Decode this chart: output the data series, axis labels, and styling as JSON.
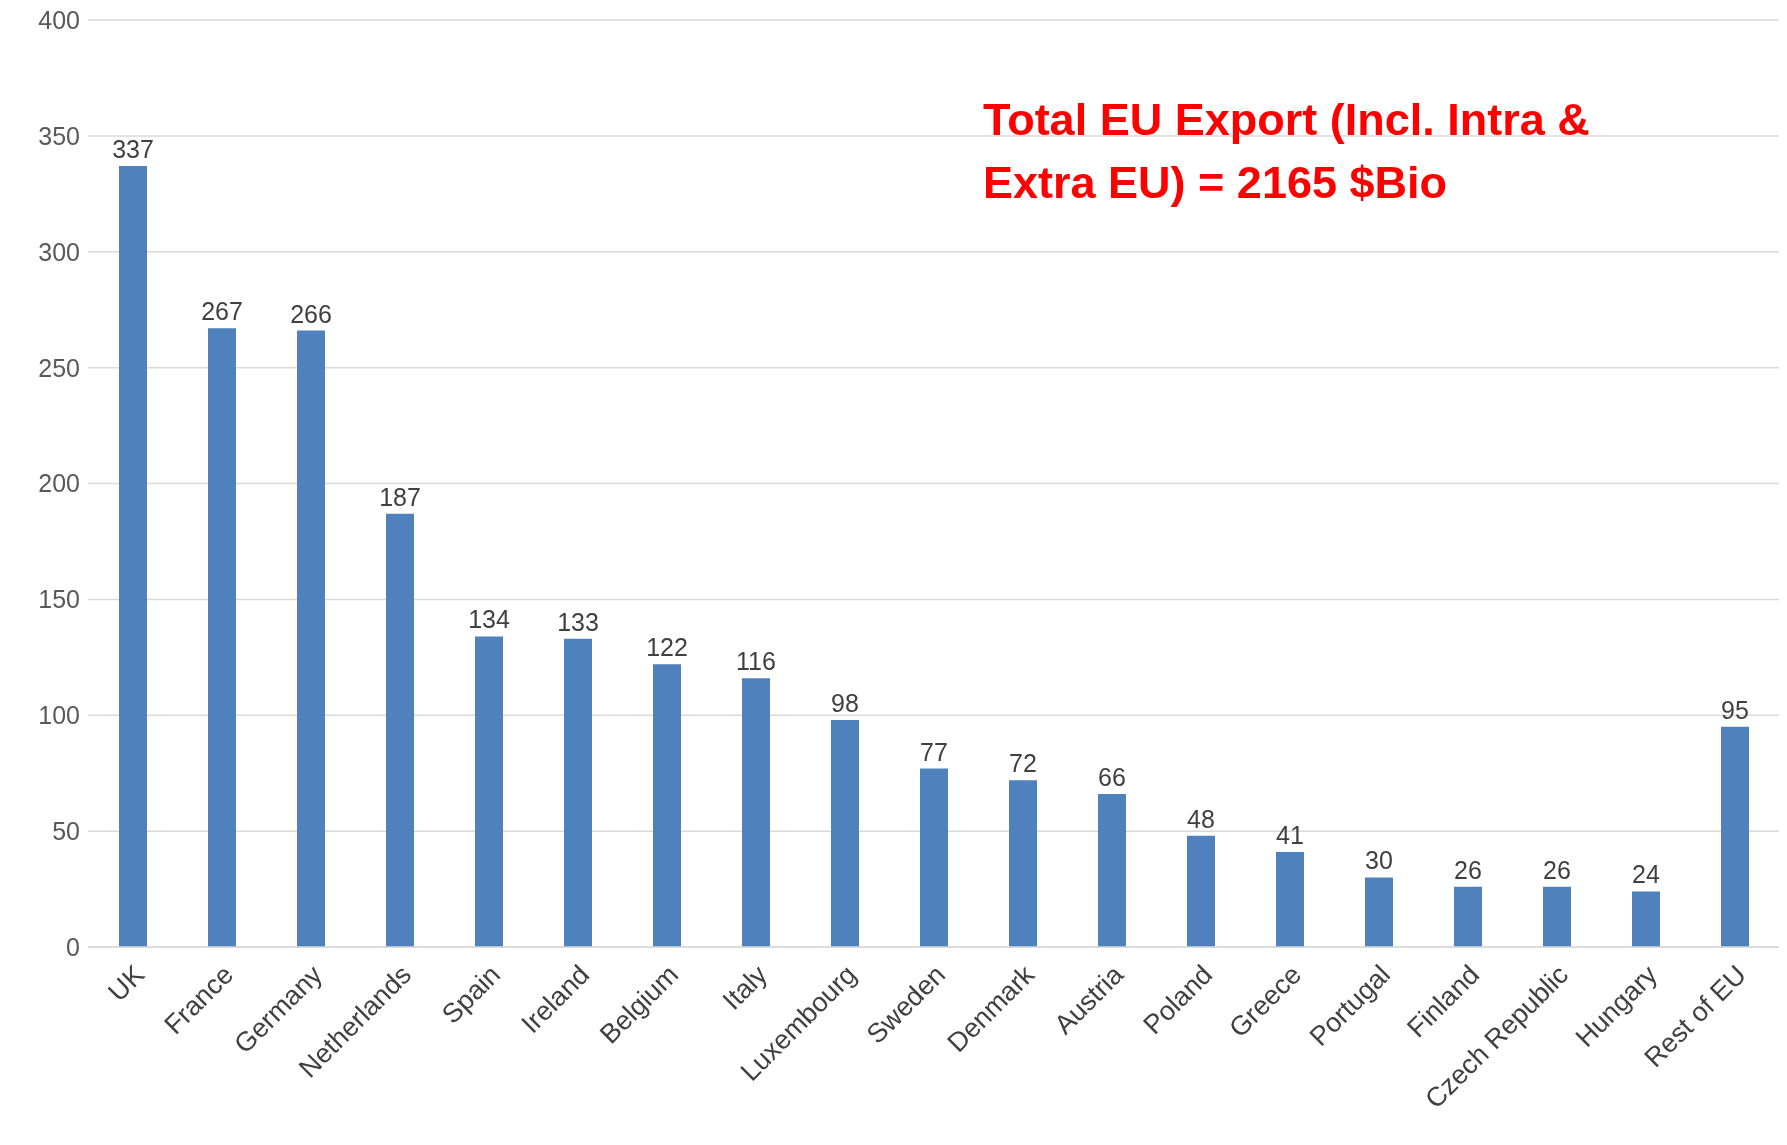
{
  "chart_data": {
    "type": "bar",
    "categories": [
      "UK",
      "France",
      "Germany",
      "Netherlands",
      "Spain",
      "Ireland",
      "Belgium",
      "Italy",
      "Luxembourg",
      "Sweden",
      "Denmark",
      "Austria",
      "Poland",
      "Greece",
      "Portugal",
      "Finland",
      "Czech Republic",
      "Hungary",
      "Rest of EU"
    ],
    "values": [
      337,
      267,
      266,
      187,
      134,
      133,
      122,
      116,
      98,
      77,
      72,
      66,
      48,
      41,
      30,
      26,
      26,
      24,
      95
    ],
    "color": "#4f81bd",
    "ylim": [
      0,
      400
    ],
    "yticks": [
      0,
      50,
      100,
      150,
      200,
      250,
      300,
      350,
      400
    ],
    "grid": "y",
    "data_labels": true,
    "annotations": [
      "Total EU Export (Incl. Intra & Extra EU) = 2165 $Bio"
    ]
  }
}
